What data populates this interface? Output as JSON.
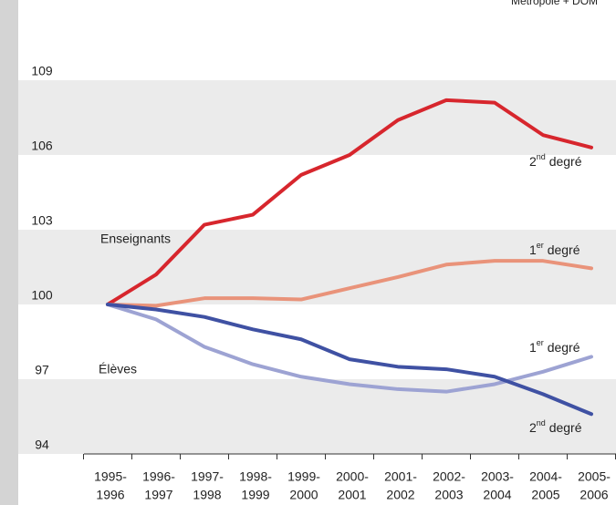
{
  "chart_data": {
    "type": "line",
    "subtitle": "Métropole + DOM",
    "categories": [
      [
        "1995-",
        "1996"
      ],
      [
        "1996-",
        "1997"
      ],
      [
        "1997-",
        "1998"
      ],
      [
        "1998-",
        "1999"
      ],
      [
        "1999-",
        "2000"
      ],
      [
        "2000-",
        "2001"
      ],
      [
        "2001-",
        "2002"
      ],
      [
        "2002-",
        "2003"
      ],
      [
        "2003-",
        "2004"
      ],
      [
        "2004-",
        "2005"
      ],
      [
        "2005-",
        "2006"
      ]
    ],
    "ylim": [
      94,
      109
    ],
    "yticks": [
      94,
      97,
      100,
      103,
      106,
      109
    ],
    "bands": true,
    "annotations": [
      "Enseignants",
      "Élèves"
    ],
    "series": [
      {
        "label": [
          "2",
          "nd",
          " degré"
        ],
        "color": "#d7262d",
        "values": [
          100,
          101.2,
          103.2,
          103.6,
          105.2,
          106,
          107.4,
          108.2,
          108.1,
          106.8,
          106.3
        ]
      },
      {
        "label": [
          "1",
          "er",
          " degré"
        ],
        "color": "#e9937a",
        "values": [
          100,
          99.95,
          100.25,
          100.25,
          100.2,
          100.65,
          101.1,
          101.6,
          101.75,
          101.75,
          101.45
        ]
      },
      {
        "label": [
          "1",
          "er",
          " degré"
        ],
        "color": "#9da3d3",
        "values": [
          100,
          99.4,
          98.3,
          97.6,
          97.1,
          96.8,
          96.6,
          96.5,
          96.8,
          97.3,
          97.9
        ]
      },
      {
        "label": [
          "2",
          "nd",
          " degré"
        ],
        "color": "#3f51a3",
        "values": [
          100,
          99.8,
          99.5,
          99.0,
          98.6,
          97.8,
          97.5,
          97.4,
          97.1,
          96.4,
          95.6
        ]
      }
    ]
  }
}
